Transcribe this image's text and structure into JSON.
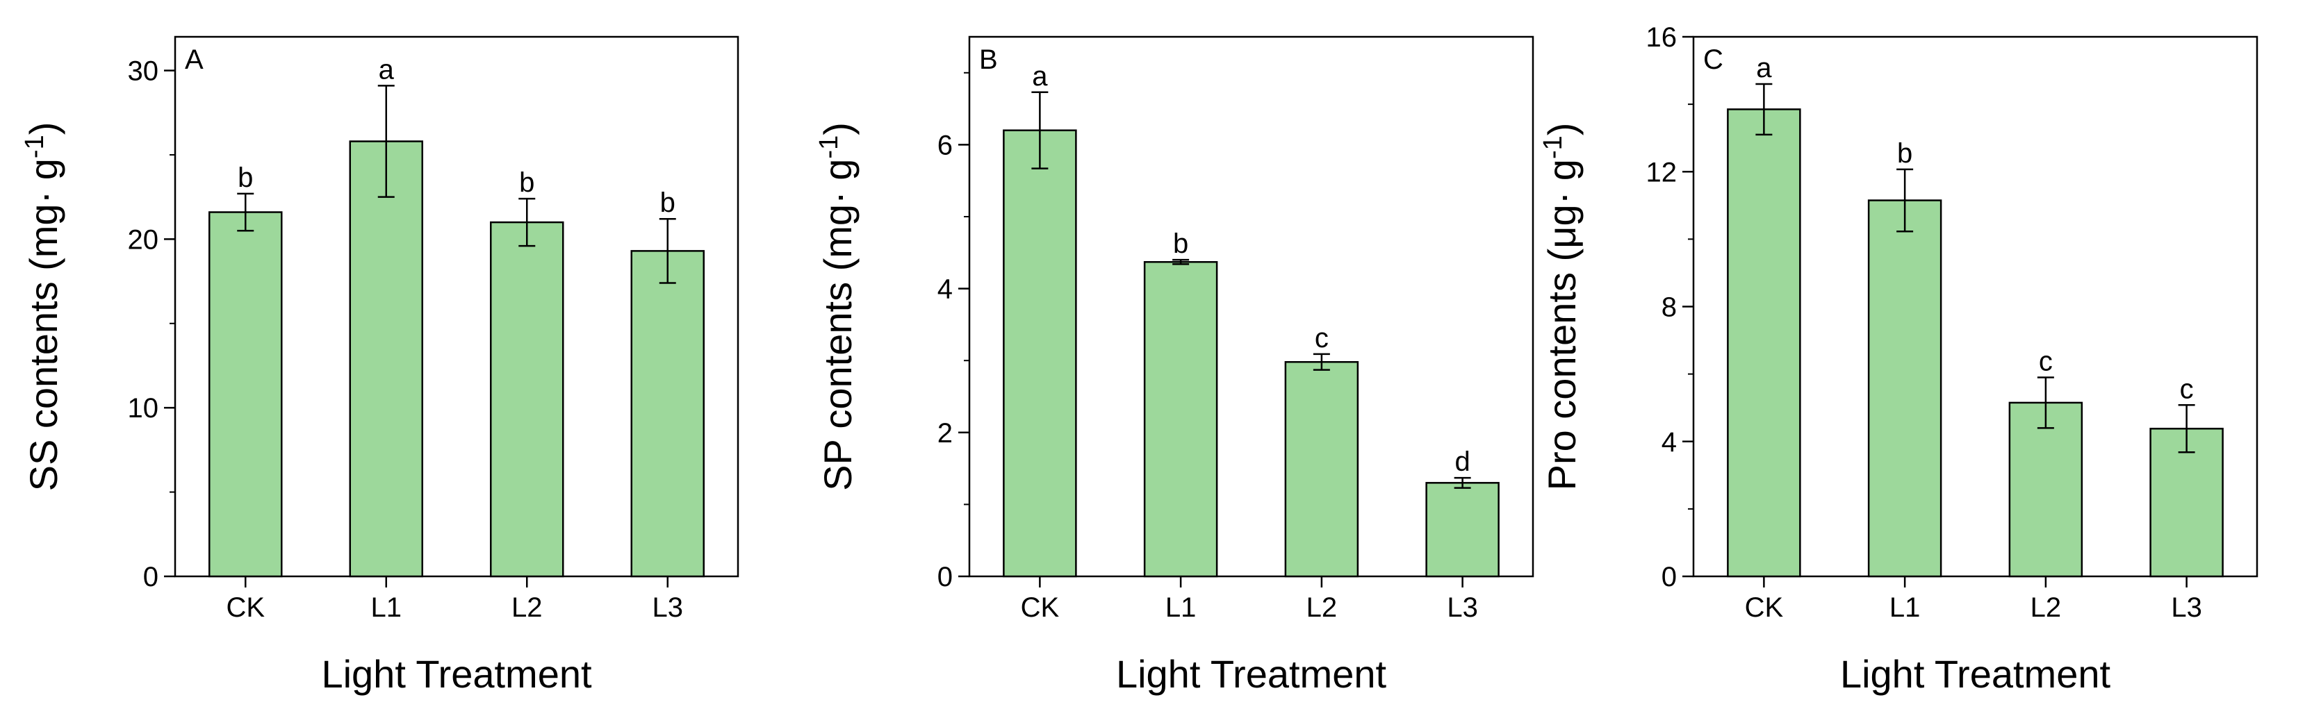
{
  "chart_data": [
    {
      "type": "bar",
      "panel": "A",
      "categories": [
        "CK",
        "L1",
        "L2",
        "L3"
      ],
      "values": [
        21.6,
        25.8,
        21.0,
        19.3
      ],
      "errors": [
        1.1,
        3.3,
        1.4,
        1.9
      ],
      "significance": [
        "b",
        "a",
        "b",
        "b"
      ],
      "ylim": [
        0,
        32
      ],
      "yticks": [
        "0",
        "10",
        "20",
        "30"
      ],
      "ytick_values": [
        0,
        10,
        20,
        30
      ],
      "minor_step": 5,
      "ylabel_main": "SS contents (mg",
      "ylabel_unit": "· g",
      "ylabel_sup": "-1",
      "ylabel_end": ")",
      "xlabel": "Light Treatment",
      "bar_color": "#9dd89b",
      "edge_color": "#000000"
    },
    {
      "type": "bar",
      "panel": "B",
      "categories": [
        "CK",
        "L1",
        "L2",
        "L3"
      ],
      "values": [
        6.2,
        4.37,
        2.98,
        1.3
      ],
      "errors": [
        0.53,
        0.03,
        0.11,
        0.07
      ],
      "significance": [
        "a",
        "b",
        "c",
        "d"
      ],
      "ylim": [
        0,
        7.5
      ],
      "yticks": [
        "0",
        "2",
        "4",
        "6"
      ],
      "ytick_values": [
        0,
        2,
        4,
        6
      ],
      "minor_step": 1,
      "ylabel_main": "SP contents (mg",
      "ylabel_unit": "· g",
      "ylabel_sup": "-1",
      "ylabel_end": ")",
      "xlabel": "Light Treatment",
      "bar_color": "#9dd89b",
      "edge_color": "#000000"
    },
    {
      "type": "bar",
      "panel": "C",
      "categories": [
        "CK",
        "L1",
        "L2",
        "L3"
      ],
      "values": [
        13.85,
        11.15,
        5.15,
        4.38
      ],
      "errors": [
        0.75,
        0.92,
        0.75,
        0.7
      ],
      "significance": [
        "a",
        "b",
        "c",
        "c"
      ],
      "ylim": [
        0,
        16
      ],
      "yticks": [
        "0",
        "4",
        "8",
        "12",
        "16"
      ],
      "ytick_values": [
        0,
        4,
        8,
        12,
        16
      ],
      "minor_step": 2,
      "ylabel_main": "Pro contents (μg",
      "ylabel_unit": "· g",
      "ylabel_sup": "-1",
      "ylabel_end": ")",
      "xlabel": "Light Treatment",
      "bar_color": "#9dd89b",
      "edge_color": "#000000"
    }
  ]
}
